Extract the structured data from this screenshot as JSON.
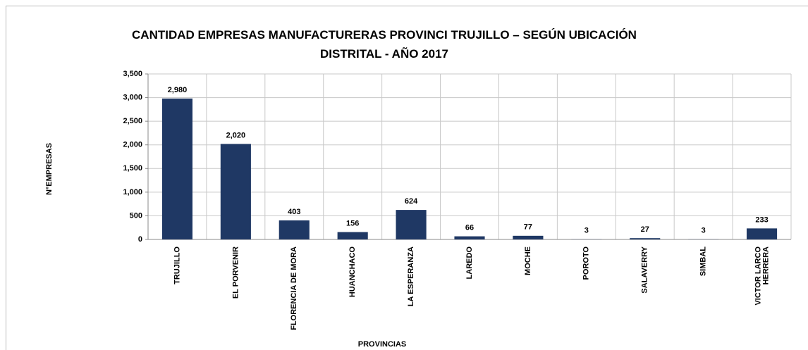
{
  "chart_data": {
    "type": "bar",
    "title": "CANTIDAD EMPRESAS MANUFACTURERAS PROVINCI TRUJILLO – SEGÚN UBICACIÓN DISTRITAL - AÑO 2017",
    "x_label": "PROVINCIAS",
    "y_label": "N°EMPRESAS",
    "categories": [
      "TRUJILLO",
      "EL PORVENIR",
      "FLORENCIA DE MORA",
      "HUANCHACO",
      "LA ESPERANZA",
      "LAREDO",
      "MOCHE",
      "POROTO",
      "SALAVERRY",
      "SIMBAL",
      "VICTOR LARCO HERRERA"
    ],
    "values": [
      2980,
      2020,
      403,
      156,
      624,
      66,
      77,
      3,
      27,
      3,
      233
    ],
    "value_labels": [
      "2,980",
      "2,020",
      "403",
      "156",
      "624",
      "66",
      "77",
      "3",
      "27",
      "3",
      "233"
    ],
    "color": "#1f3864",
    "ylim": [
      0,
      3500
    ],
    "yticks": [
      0,
      500,
      {
        "value": 1000,
        "label": "1,000"
      },
      {
        "value": 1500,
        "label": "1,500"
      },
      {
        "value": 2000,
        "label": "2,000"
      },
      {
        "value": 2500,
        "label": "2,500"
      },
      {
        "value": 3000,
        "label": "3,000"
      },
      {
        "value": 3500,
        "label": "3,500"
      }
    ],
    "grid": true
  }
}
